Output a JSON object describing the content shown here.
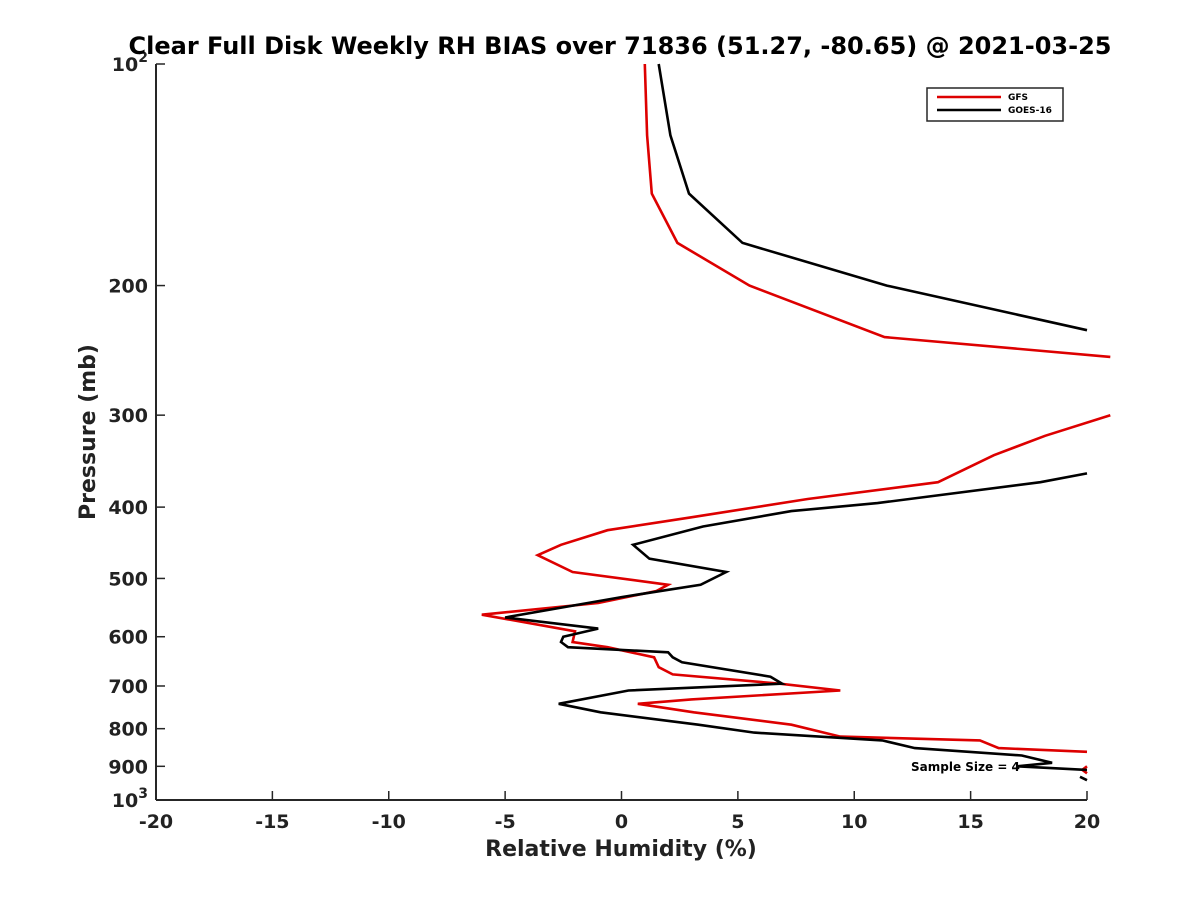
{
  "chart_data": {
    "type": "line",
    "title": "Clear Full Disk Weekly RH BIAS over 71836 (51.27, -80.65) @ 2021-03-25",
    "xlabel": "Relative Humidity (%)",
    "ylabel": "Pressure (mb)",
    "xlim": [
      -20,
      20
    ],
    "ylim": [
      100,
      1000
    ],
    "yscale": "log",
    "yreversed": true,
    "grid": false,
    "legend_position": "top-right",
    "x_ticks": [
      "-20",
      "-15",
      "-10",
      "-5",
      "0",
      "5",
      "10",
      "15",
      "20"
    ],
    "y_ticks": [
      {
        "value": 100,
        "base": "10",
        "exp": "2"
      },
      {
        "value": 200,
        "label": "200"
      },
      {
        "value": 300,
        "label": "300"
      },
      {
        "value": 400,
        "label": "400"
      },
      {
        "value": 500,
        "label": "500"
      },
      {
        "value": 600,
        "label": "600"
      },
      {
        "value": 700,
        "label": "700"
      },
      {
        "value": 800,
        "label": "800"
      },
      {
        "value": 900,
        "label": "900"
      },
      {
        "value": 1000,
        "base": "10",
        "exp": "3"
      }
    ],
    "annotation": "Sample Size = 4",
    "series": [
      {
        "name": "GFS",
        "color": "#dd0000",
        "segments": [
          [
            [
              1,
              100
            ],
            [
              1.1,
              125
            ],
            [
              1.3,
              150
            ],
            [
              2.4,
              175
            ],
            [
              5.5,
              200
            ],
            [
              11.3,
              235
            ],
            [
              21,
              250
            ]
          ],
          [
            [
              21,
              300
            ],
            [
              18.2,
              320
            ],
            [
              16,
              340
            ],
            [
              13.6,
              370
            ],
            [
              8,
              390
            ],
            [
              3,
              413
            ],
            [
              -0.6,
              430
            ],
            [
              -2.6,
              450
            ],
            [
              -3.6,
              465
            ],
            [
              -2.1,
              490
            ],
            [
              2,
              510
            ],
            [
              1.5,
              520
            ],
            [
              -1,
              540
            ],
            [
              -6,
              560
            ],
            [
              -2,
              590
            ],
            [
              -2.1,
              610
            ],
            [
              -0.6,
              620
            ],
            [
              1.4,
              640
            ],
            [
              1.6,
              660
            ],
            [
              2.2,
              675
            ],
            [
              6.8,
              695
            ],
            [
              9.4,
              710
            ],
            [
              3,
              730
            ],
            [
              0.7,
              740
            ],
            [
              3.1,
              760
            ],
            [
              7.3,
              790
            ],
            [
              9.4,
              820
            ],
            [
              15.4,
              830
            ],
            [
              16.2,
              850
            ],
            [
              20,
              860
            ]
          ],
          [
            [
              20,
              900
            ],
            [
              19.8,
              910
            ],
            [
              20,
              920
            ]
          ]
        ]
      },
      {
        "name": "GOES-16",
        "color": "#000000",
        "segments": [
          [
            [
              1.6,
              100
            ],
            [
              2.1,
              125
            ],
            [
              2.9,
              150
            ],
            [
              5.2,
              175
            ],
            [
              11.4,
              200
            ],
            [
              20,
              230
            ]
          ],
          [
            [
              20,
              360
            ],
            [
              18,
              370
            ],
            [
              11,
              395
            ],
            [
              7.3,
              405
            ],
            [
              3.5,
              425
            ],
            [
              0.5,
              450
            ],
            [
              1.2,
              470
            ],
            [
              4.5,
              490
            ],
            [
              3.4,
              510
            ],
            [
              0,
              530
            ],
            [
              -5,
              565
            ],
            [
              -1,
              585
            ],
            [
              -2.5,
              600
            ],
            [
              -2.6,
              610
            ],
            [
              -2.3,
              620
            ],
            [
              2,
              630
            ],
            [
              2.2,
              640
            ],
            [
              2.6,
              650
            ],
            [
              6.4,
              680
            ],
            [
              6.9,
              695
            ],
            [
              0.3,
              710
            ],
            [
              -2.7,
              740
            ],
            [
              -0.9,
              760
            ],
            [
              3.3,
              790
            ],
            [
              5.7,
              810
            ],
            [
              11.2,
              830
            ],
            [
              12.6,
              850
            ],
            [
              17.2,
              870
            ],
            [
              18.5,
              890
            ],
            [
              17,
              900
            ],
            [
              20,
              910
            ]
          ],
          [
            [
              19.7,
              930
            ],
            [
              20,
              940
            ]
          ]
        ]
      }
    ]
  }
}
